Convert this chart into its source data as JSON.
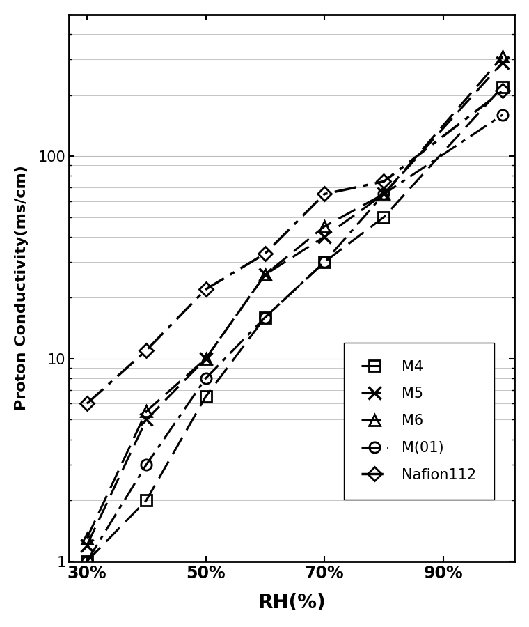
{
  "title": "",
  "xlabel": "RH(%)",
  "ylabel": "Proton Conductivity(ms/cm)",
  "xlim": [
    0.27,
    1.02
  ],
  "ylim": [
    1,
    500
  ],
  "series": [
    {
      "label": "M4",
      "marker": "s",
      "linestyle_key": "dashed",
      "color": "#000000",
      "markersize": 11,
      "linewidth": 2.2,
      "x": [
        0.3,
        0.4,
        0.5,
        0.6,
        0.7,
        0.8,
        1.0
      ],
      "y": [
        1.0,
        2.0,
        6.5,
        16.0,
        30.0,
        50.0,
        220.0
      ]
    },
    {
      "label": "M5",
      "marker": "x",
      "linestyle_key": "dashed",
      "color": "#000000",
      "markersize": 13,
      "linewidth": 2.2,
      "x": [
        0.3,
        0.4,
        0.5,
        0.6,
        0.7,
        0.8,
        1.0
      ],
      "y": [
        1.2,
        5.0,
        10.0,
        26.0,
        40.0,
        65.0,
        290.0
      ]
    },
    {
      "label": "M6",
      "marker": "^",
      "linestyle_key": "dashed",
      "color": "#000000",
      "markersize": 11,
      "linewidth": 2.2,
      "x": [
        0.3,
        0.4,
        0.5,
        0.6,
        0.7,
        0.8,
        1.0
      ],
      "y": [
        1.3,
        5.5,
        10.0,
        26.0,
        45.0,
        65.0,
        310.0
      ]
    },
    {
      "label": "M(01)",
      "marker": "o",
      "linestyle_key": "dashdot",
      "color": "#000000",
      "markersize": 11,
      "linewidth": 2.2,
      "x": [
        0.3,
        0.4,
        0.5,
        0.6,
        0.7,
        0.8,
        1.0
      ],
      "y": [
        1.0,
        3.0,
        8.0,
        16.0,
        30.0,
        65.0,
        160.0
      ]
    },
    {
      "label": "Nafion112",
      "marker": "D",
      "linestyle_key": "dashdot",
      "color": "#000000",
      "markersize": 10,
      "linewidth": 2.5,
      "x": [
        0.3,
        0.4,
        0.5,
        0.6,
        0.7,
        0.8,
        1.0
      ],
      "y": [
        6.0,
        11.0,
        22.0,
        33.0,
        65.0,
        75.0,
        210.0
      ]
    }
  ],
  "xticks": [
    0.3,
    0.5,
    0.7,
    0.9
  ],
  "xticklabels": [
    "30%",
    "50%",
    "70%",
    "90%"
  ],
  "yticks": [
    1,
    10,
    100
  ],
  "grid_color": "#bbbbbb",
  "background_color": "#ffffff"
}
